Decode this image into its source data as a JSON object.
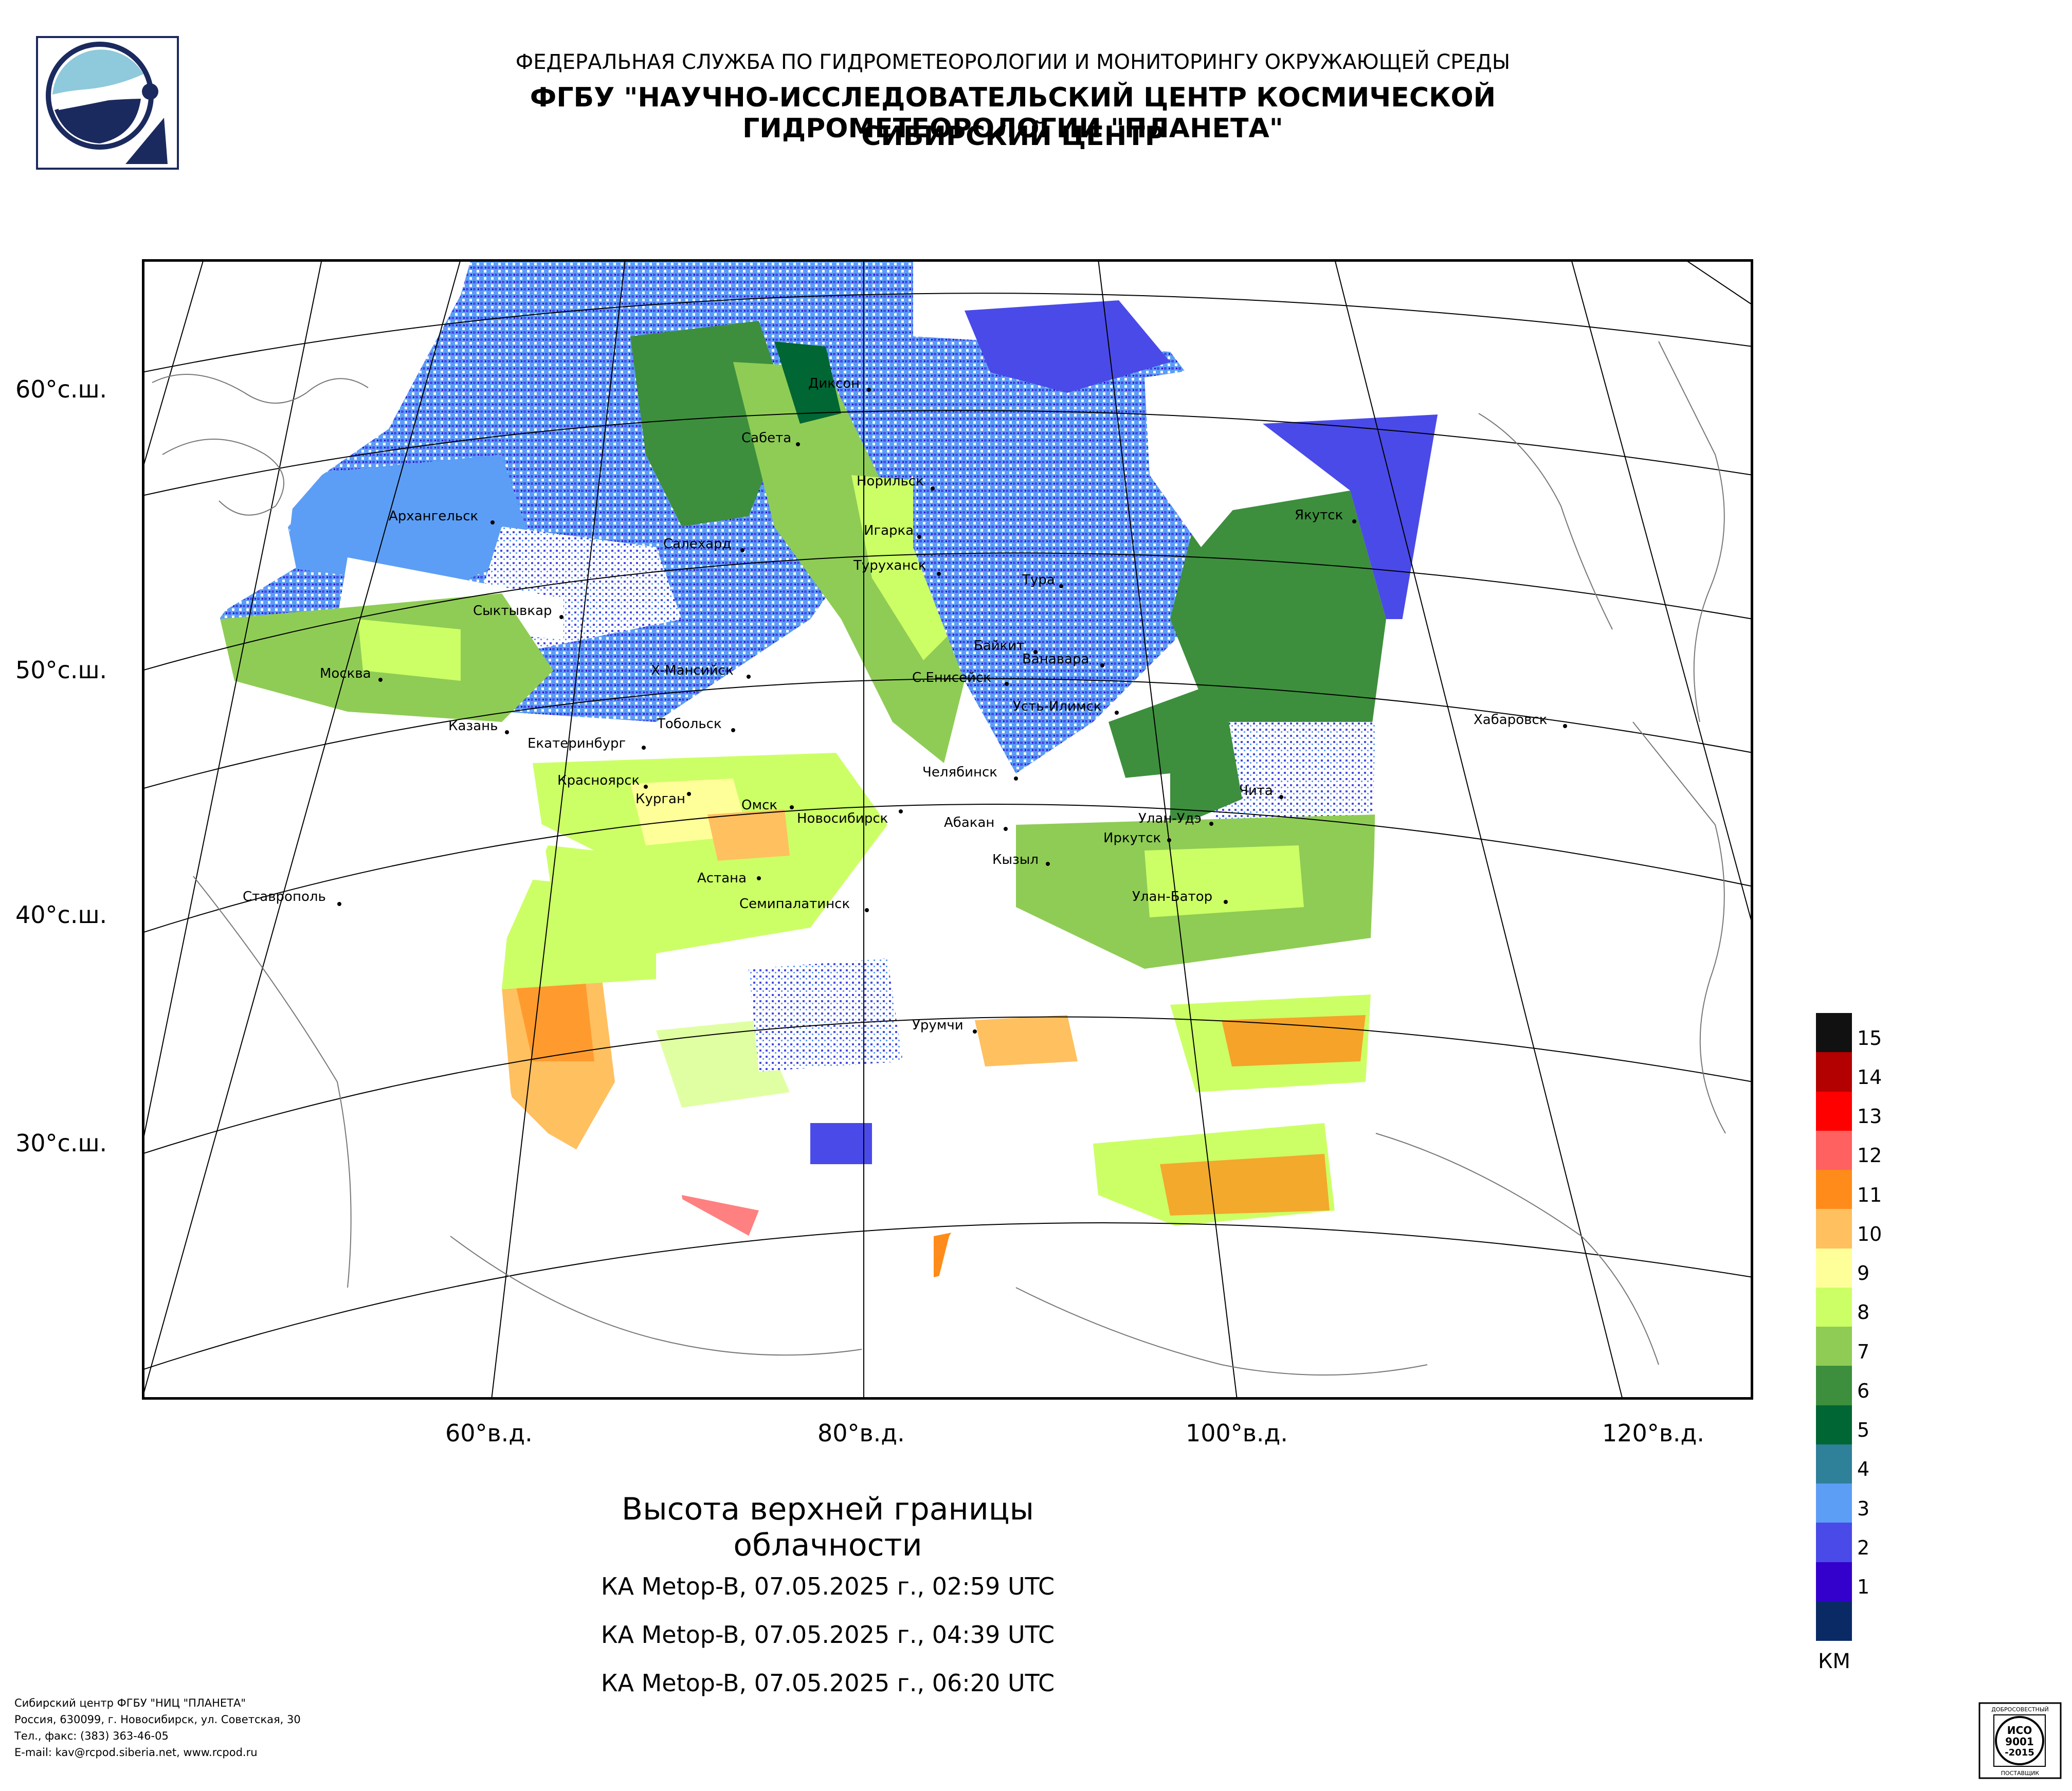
{
  "header": {
    "line1": "ФЕДЕРАЛЬНАЯ СЛУЖБА ПО ГИДРОМЕТЕОРОЛОГИИ И МОНИТОРИНГУ ОКРУЖАЮЩЕЙ СРЕДЫ",
    "line2": "ФГБУ \"НАУЧНО-ИССЛЕДОВАТЕЛЬСКИЙ ЦЕНТР КОСМИЧЕСКОЙ ГИДРОМЕТЕОРОЛОГИИ \"ПЛАНЕТА\"",
    "line3": "СИБИРСКИЙ ЦЕНТР"
  },
  "map": {
    "lat_labels": [
      "60°с.ш.",
      "50°с.ш.",
      "40°с.ш.",
      "30°с.ш."
    ],
    "lon_labels": [
      "60°в.д.",
      "80°в.д.",
      "100°в.д.",
      "120°в.д."
    ],
    "cities": [
      {
        "name": "Диксон"
      },
      {
        "name": "Сабета"
      },
      {
        "name": "Норильск"
      },
      {
        "name": "Якутск"
      },
      {
        "name": "Архангельск"
      },
      {
        "name": "Игарка"
      },
      {
        "name": "Салехард"
      },
      {
        "name": "Туруханск"
      },
      {
        "name": "Тура"
      },
      {
        "name": "Сыктывкар"
      },
      {
        "name": "Байкит"
      },
      {
        "name": "Ванавара"
      },
      {
        "name": "Москва"
      },
      {
        "name": "Х-Мансийск"
      },
      {
        "name": "С.Енисейск"
      },
      {
        "name": "Усть-Илимск"
      },
      {
        "name": "Хабаровск"
      },
      {
        "name": "Казань"
      },
      {
        "name": "Тобольск"
      },
      {
        "name": "Екатеринбург"
      },
      {
        "name": "Челябинск"
      },
      {
        "name": "Красноярск"
      },
      {
        "name": "Чита"
      },
      {
        "name": "Курган"
      },
      {
        "name": "Омск"
      },
      {
        "name": "Новосибирск"
      },
      {
        "name": "Абакан"
      },
      {
        "name": "Улан-Удэ"
      },
      {
        "name": "Иркутск"
      },
      {
        "name": "Кызыл"
      },
      {
        "name": "Астана"
      },
      {
        "name": "Улан-Батор"
      },
      {
        "name": "Ставрополь"
      },
      {
        "name": "Семипалатинск"
      },
      {
        "name": "Урумчи"
      }
    ]
  },
  "title": "Высота верхней границы облачности",
  "passes": [
    "КА Metop-B, 07.05.2025 г., 02:59 UTC",
    "КА Metop-B, 07.05.2025 г., 04:39 UTC",
    "КА Metop-B, 07.05.2025 г., 06:20 UTC"
  ],
  "legend": {
    "unit": "КМ",
    "levels": [
      {
        "label": "15",
        "color": "#111111"
      },
      {
        "label": "14",
        "color": "#b30000"
      },
      {
        "label": "13",
        "color": "#ff0000"
      },
      {
        "label": "12",
        "color": "#ff6060"
      },
      {
        "label": "11",
        "color": "#ff8c1a"
      },
      {
        "label": "10",
        "color": "#ffc060"
      },
      {
        "label": "9",
        "color": "#ffff99"
      },
      {
        "label": "8",
        "color": "#ccff66"
      },
      {
        "label": "7",
        "color": "#8fcc55"
      },
      {
        "label": "6",
        "color": "#3d8f3d"
      },
      {
        "label": "5",
        "color": "#006633"
      },
      {
        "label": "4",
        "color": "#2f8099"
      },
      {
        "label": "3",
        "color": "#5c9ef5"
      },
      {
        "label": "2",
        "color": "#4a4ae8"
      },
      {
        "label": "1",
        "color": "#3300cc"
      },
      {
        "label": "",
        "color": "#0a2a66"
      }
    ]
  },
  "footer": {
    "line1": "Сибирский центр ФГБУ \"НИЦ \"ПЛАНЕТА\"",
    "line2": "Россия, 630099, г. Новосибирск, ул. Советская, 30",
    "line3": "Тел., факс: (383) 363-46-05",
    "line4": "E-mail: kav@rcpod.siberia.net, www.rcpod.ru"
  },
  "iso_badge": {
    "top": "ДОБРОСОВЕСТНЫЙ",
    "mid": "ИСО 9001 -2015",
    "bottom": "ПОСТАВЩИК"
  }
}
